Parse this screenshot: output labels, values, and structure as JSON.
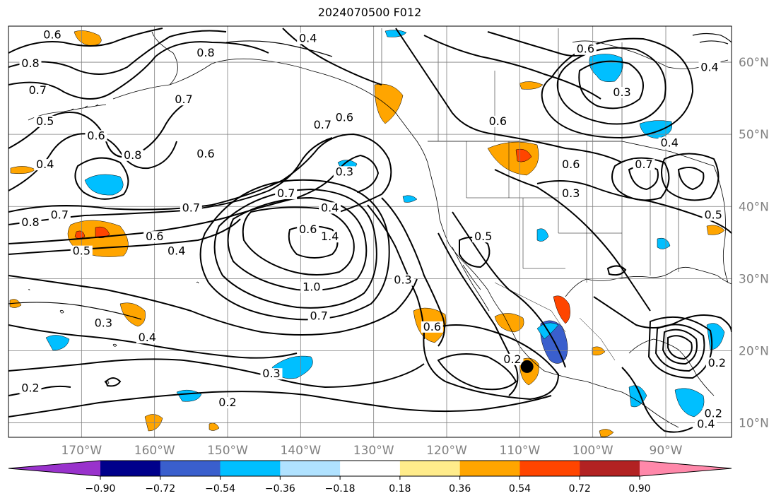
{
  "title": "2024070500 F012",
  "map": {
    "lon_range": [
      -180,
      -81
    ],
    "lat_range": [
      8,
      65
    ],
    "gridlines": true,
    "lon_ticks": [
      {
        "value": -170,
        "label": "170°W"
      },
      {
        "value": -160,
        "label": "160°W"
      },
      {
        "value": -150,
        "label": "150°W"
      },
      {
        "value": -140,
        "label": "140°W"
      },
      {
        "value": -130,
        "label": "130°W"
      },
      {
        "value": -120,
        "label": "120°W"
      },
      {
        "value": -110,
        "label": "110°W"
      },
      {
        "value": -100,
        "label": "100°W"
      },
      {
        "value": -90,
        "label": "90°W"
      }
    ],
    "lat_ticks": [
      {
        "value": 60,
        "label": "60°N"
      },
      {
        "value": 50,
        "label": "50°N"
      },
      {
        "value": 40,
        "label": "40°N"
      },
      {
        "value": 30,
        "label": "30°N"
      },
      {
        "value": 20,
        "label": "20°N"
      },
      {
        "value": 10,
        "label": "10°N"
      }
    ],
    "marker": {
      "lon": -109,
      "lat": 17.8,
      "name": "storm-position"
    }
  },
  "contour_labels": [
    {
      "text": "0.6",
      "lon": -174,
      "lat": 63.5
    },
    {
      "text": "0.8",
      "lon": -177,
      "lat": 59.5
    },
    {
      "text": "0.7",
      "lon": -176,
      "lat": 55.8
    },
    {
      "text": "0.5",
      "lon": -175,
      "lat": 51.5
    },
    {
      "text": "0.4",
      "lon": -175,
      "lat": 45.5
    },
    {
      "text": "0.6",
      "lon": -168,
      "lat": 49.5
    },
    {
      "text": "0.8",
      "lon": -163,
      "lat": 46.8
    },
    {
      "text": "0.6",
      "lon": -153,
      "lat": 47
    },
    {
      "text": "0.7",
      "lon": -156,
      "lat": 54.5
    },
    {
      "text": "0.8",
      "lon": -153,
      "lat": 61
    },
    {
      "text": "0.7",
      "lon": -137,
      "lat": 51
    },
    {
      "text": "0.6",
      "lon": -134,
      "lat": 52
    },
    {
      "text": "0.4",
      "lon": -139,
      "lat": 63
    },
    {
      "text": "0.8",
      "lon": -177,
      "lat": 37.5
    },
    {
      "text": "0.7",
      "lon": -173,
      "lat": 38.5
    },
    {
      "text": "0.5",
      "lon": -170,
      "lat": 33.5
    },
    {
      "text": "0.6",
      "lon": -160,
      "lat": 35.5
    },
    {
      "text": "0.4",
      "lon": -157,
      "lat": 33.5
    },
    {
      "text": "0.7",
      "lon": -155,
      "lat": 39.5
    },
    {
      "text": "0.7",
      "lon": -142,
      "lat": 41.5
    },
    {
      "text": "0.4",
      "lon": -136,
      "lat": 39.5
    },
    {
      "text": "0.6",
      "lon": -139,
      "lat": 36.5
    },
    {
      "text": "1.4",
      "lon": -136,
      "lat": 35.5
    },
    {
      "text": "1.0",
      "lon": -138.5,
      "lat": 28.5
    },
    {
      "text": "0.7",
      "lon": -137.5,
      "lat": 24.5
    },
    {
      "text": "0.3",
      "lon": -134,
      "lat": 44.5
    },
    {
      "text": "0.3",
      "lon": -167,
      "lat": 23.5
    },
    {
      "text": "0.4",
      "lon": -161,
      "lat": 21.5
    },
    {
      "text": "0.3",
      "lon": -144,
      "lat": 16.5
    },
    {
      "text": "0.2",
      "lon": -150,
      "lat": 12.5
    },
    {
      "text": "0.2",
      "lon": -177,
      "lat": 14.5
    },
    {
      "text": "0.3",
      "lon": -126,
      "lat": 29.5
    },
    {
      "text": "0.6",
      "lon": -122,
      "lat": 23
    },
    {
      "text": "0.2",
      "lon": -111,
      "lat": 18.5
    },
    {
      "text": "0.5",
      "lon": -115,
      "lat": 35.5
    },
    {
      "text": "0.6",
      "lon": -113,
      "lat": 51.5
    },
    {
      "text": "0.6",
      "lon": -103,
      "lat": 45.5
    },
    {
      "text": "0.3",
      "lon": -103,
      "lat": 41.5
    },
    {
      "text": "0.3",
      "lon": -96,
      "lat": 55.5
    },
    {
      "text": "0.6",
      "lon": -101,
      "lat": 61.5
    },
    {
      "text": "0.4",
      "lon": -84,
      "lat": 59
    },
    {
      "text": "0.4",
      "lon": -89.5,
      "lat": 48.5
    },
    {
      "text": "0.7",
      "lon": -93,
      "lat": 45.5
    },
    {
      "text": "0.5",
      "lon": -83.5,
      "lat": 38.5
    },
    {
      "text": "0.2",
      "lon": -83,
      "lat": 18
    },
    {
      "text": "0.2",
      "lon": -83.5,
      "lat": 11
    },
    {
      "text": "0.4",
      "lon": -84.5,
      "lat": 9.5
    }
  ],
  "colorbar": {
    "ticks": [
      "−0.90",
      "−0.72",
      "−0.54",
      "−0.36",
      "−0.18",
      "0.18",
      "0.36",
      "0.54",
      "0.72",
      "0.90"
    ],
    "colors": [
      "#9932cc",
      "#00008b",
      "#3a5fcd",
      "#00bfff",
      "#b0e2ff",
      "#ffffff",
      "#ffec8b",
      "#ffa500",
      "#ff4500",
      "#b22222",
      "#ff88aa"
    ]
  }
}
